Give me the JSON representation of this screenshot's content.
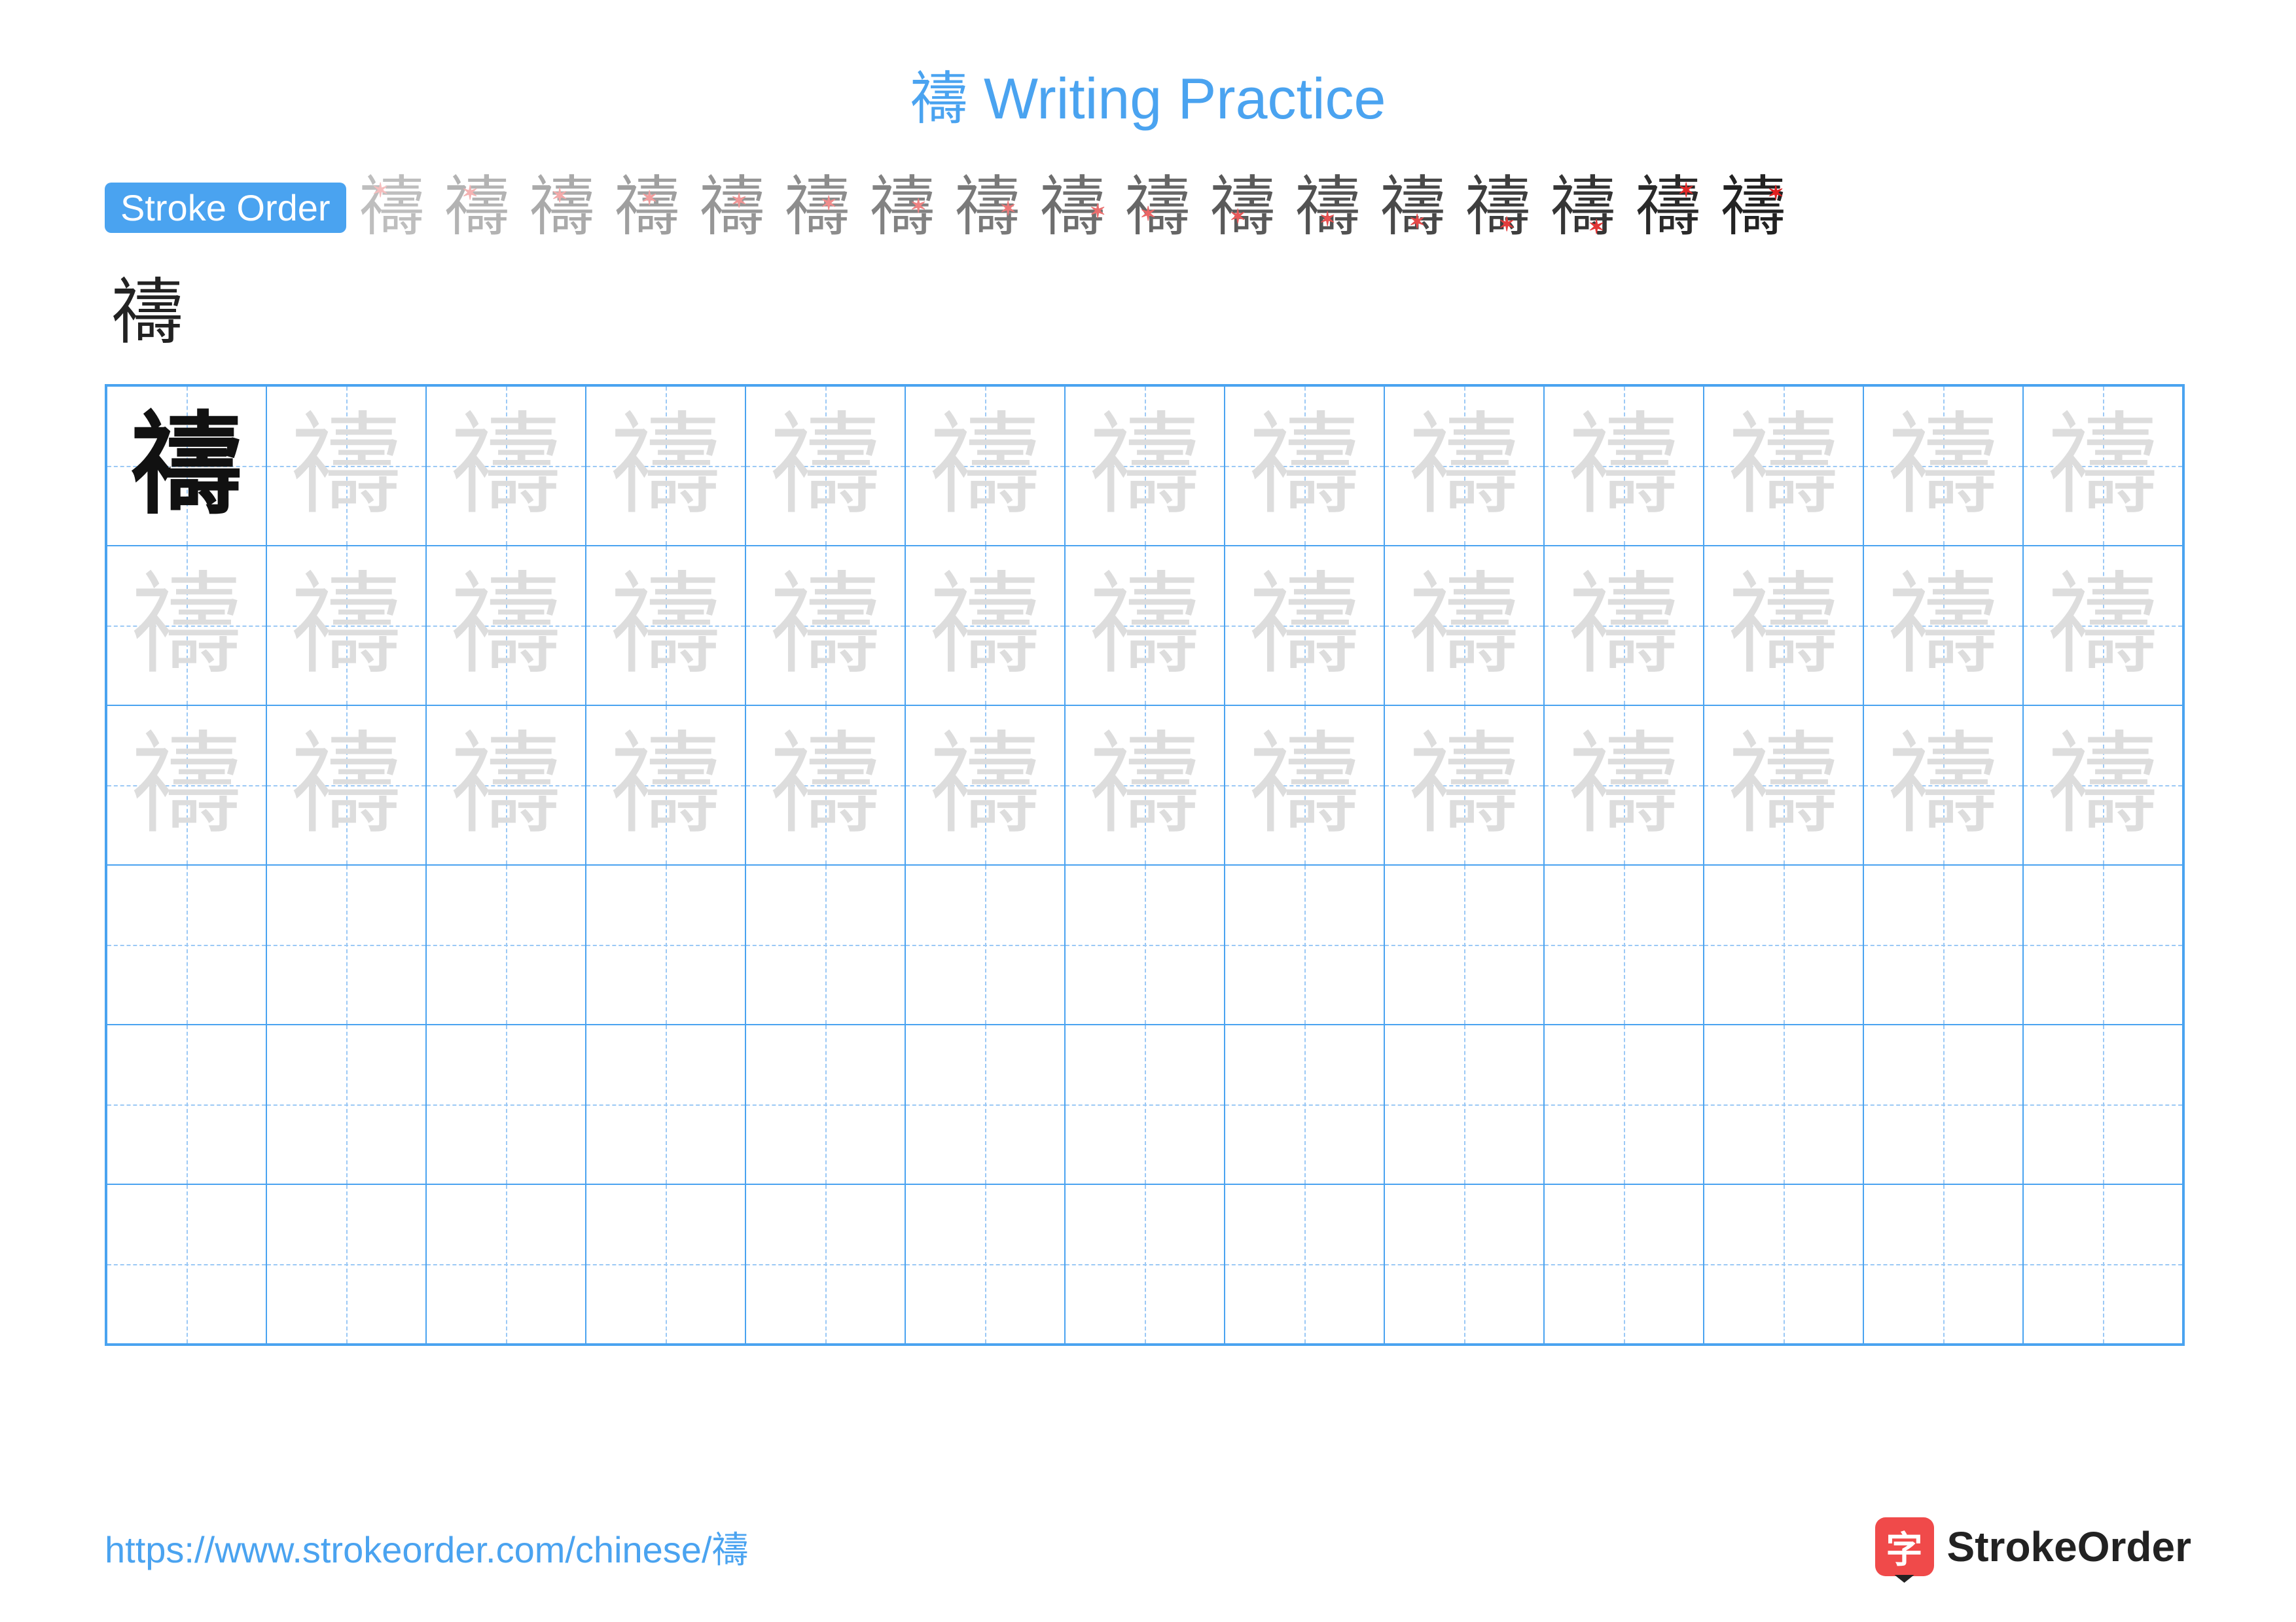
{
  "title": "禱 Writing Practice",
  "title_color": "#4aa3f0",
  "stroke_badge": {
    "label": "Stroke Order",
    "bg": "#4aa3f0",
    "color": "#ffffff"
  },
  "character": "禱",
  "stroke_steps_count": 17,
  "overflow_char": "禱",
  "grid": {
    "columns": 13,
    "rows": 6,
    "cell_size": 244,
    "border_color": "#4aa3f0",
    "guide_color": "#9cc9f5",
    "trace_rows": 3,
    "first_cell_bold_color": "#111111",
    "trace_color": "#dddddd"
  },
  "footer": {
    "url": "https://www.strokeorder.com/chinese/禱",
    "url_color": "#4aa3f0",
    "brand_text": "StrokeOrder",
    "brand_icon_bg": "#f04a4a",
    "brand_icon_char": "字"
  },
  "colors": {
    "background": "#ffffff",
    "text": "#222222"
  }
}
